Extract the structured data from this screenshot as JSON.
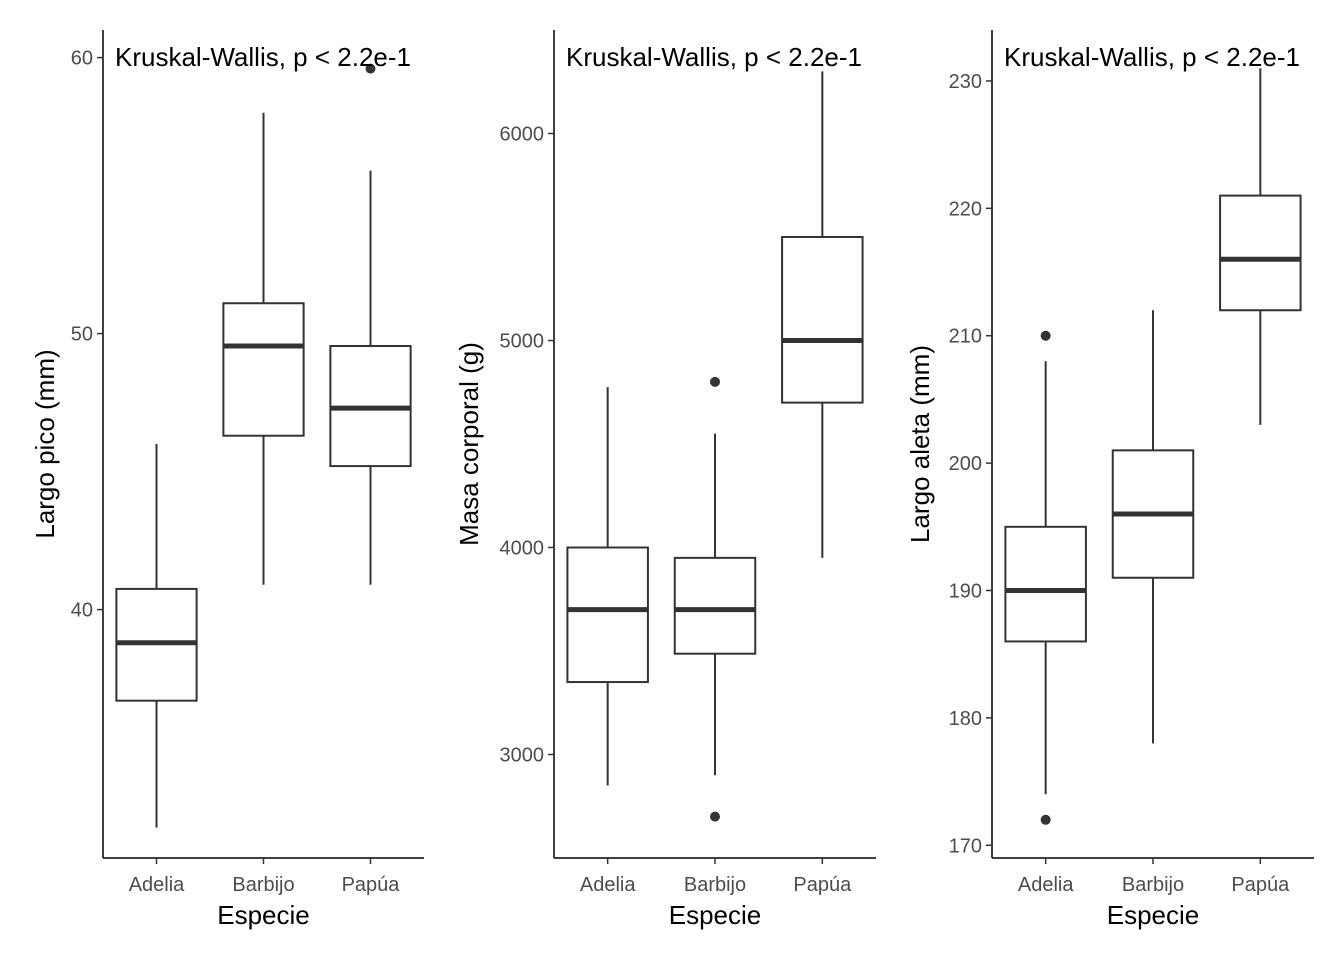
{
  "chart_data": [
    {
      "type": "boxplot",
      "xlabel": "Especie",
      "ylabel": "Largo pico (mm)",
      "categories": [
        "Adelia",
        "Barbijo",
        "Papúa"
      ],
      "annotation": "Kruskal-Wallis, p < 2.2e-1",
      "ylim": [
        31.0,
        61.0
      ],
      "yticks": [
        40,
        50,
        60
      ],
      "grid": false,
      "boxes": [
        {
          "category": "Adelia",
          "min": 32.1,
          "q1": 36.7,
          "median": 38.8,
          "q3": 40.75,
          "max": 46.0,
          "outliers": []
        },
        {
          "category": "Barbijo",
          "min": 40.9,
          "q1": 46.3,
          "median": 49.55,
          "q3": 51.1,
          "max": 58.0,
          "outliers": []
        },
        {
          "category": "Papúa",
          "min": 40.9,
          "q1": 45.2,
          "median": 47.3,
          "q3": 49.55,
          "max": 55.9,
          "outliers": [
            59.6
          ]
        }
      ]
    },
    {
      "type": "boxplot",
      "xlabel": "Especie",
      "ylabel": "Masa corporal (g)",
      "categories": [
        "Adelia",
        "Barbijo",
        "Papúa"
      ],
      "annotation": "Kruskal-Wallis, p < 2.2e-1",
      "ylim": [
        2500,
        6500
      ],
      "yticks": [
        3000,
        4000,
        5000,
        6000
      ],
      "grid": false,
      "boxes": [
        {
          "category": "Adelia",
          "min": 2850,
          "q1": 3350,
          "median": 3700,
          "q3": 4000,
          "max": 4775,
          "outliers": []
        },
        {
          "category": "Barbijo",
          "min": 2900,
          "q1": 3487,
          "median": 3700,
          "q3": 3950,
          "max": 4550,
          "outliers": [
            2700,
            4800
          ]
        },
        {
          "category": "Papúa",
          "min": 3950,
          "q1": 4700,
          "median": 5000,
          "q3": 5500,
          "max": 6300,
          "outliers": []
        }
      ]
    },
    {
      "type": "boxplot",
      "xlabel": "Especie",
      "ylabel": "Largo aleta (mm)",
      "categories": [
        "Adelia",
        "Barbijo",
        "Papúa"
      ],
      "annotation": "Kruskal-Wallis, p < 2.2e-1",
      "ylim": [
        169,
        234
      ],
      "yticks": [
        170,
        180,
        190,
        200,
        210,
        220,
        230
      ],
      "grid": false,
      "boxes": [
        {
          "category": "Adelia",
          "min": 174,
          "q1": 186,
          "median": 190,
          "q3": 195,
          "max": 208,
          "outliers": [
            172,
            210
          ]
        },
        {
          "category": "Barbijo",
          "min": 178,
          "q1": 191,
          "median": 196,
          "q3": 201,
          "max": 212,
          "outliers": []
        },
        {
          "category": "Papúa",
          "min": 203,
          "q1": 212,
          "median": 216,
          "q3": 221,
          "max": 231,
          "outliers": []
        }
      ]
    }
  ]
}
